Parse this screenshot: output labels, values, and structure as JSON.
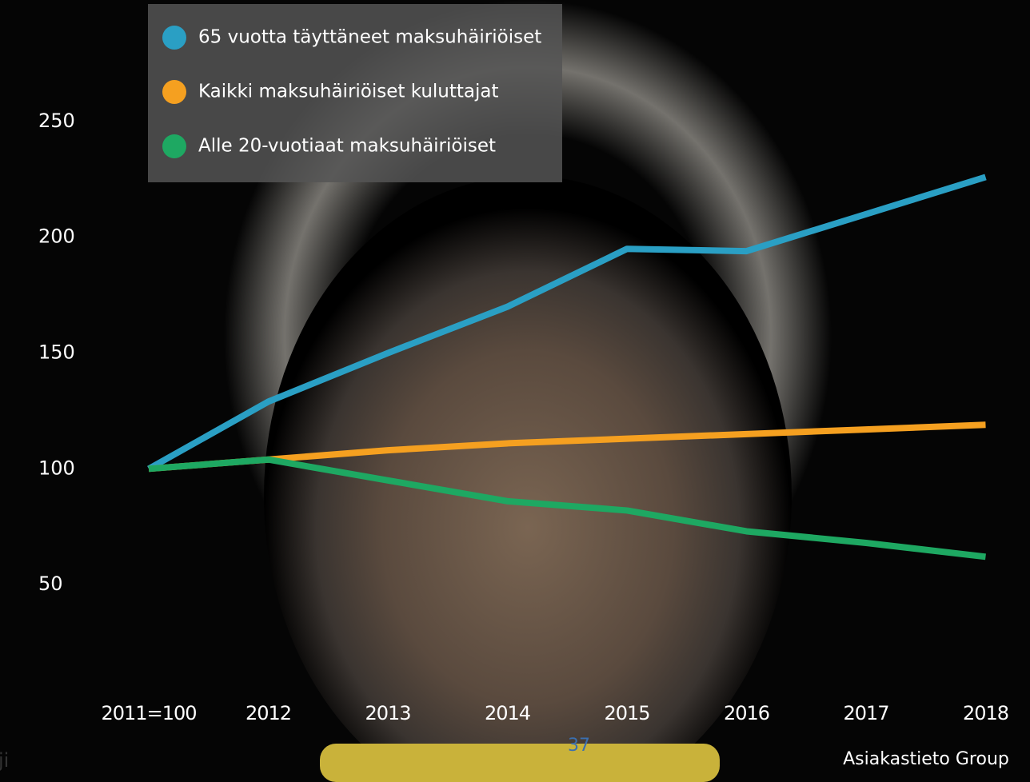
{
  "chart_data": {
    "type": "line",
    "categories": [
      "2011=100",
      "2012",
      "2013",
      "2014",
      "2015",
      "2016",
      "2017",
      "2018"
    ],
    "series": [
      {
        "name": "65 vuotta täyttäneet maksuhäiriöiset",
        "color": "#2a9fc4",
        "values": [
          100,
          129,
          150,
          170,
          195,
          194,
          210,
          226
        ]
      },
      {
        "name": "Kaikki maksuhäiriöiset kuluttajat",
        "color": "#f5a020",
        "values": [
          100,
          104,
          108,
          111,
          113,
          115,
          117,
          119
        ]
      },
      {
        "name": "Alle 20-vuotiaat maksuhäiriöiset",
        "color": "#1ea862",
        "values": [
          100,
          104,
          95,
          86,
          82,
          73,
          68,
          62
        ]
      }
    ],
    "ylim": [
      30,
      260
    ],
    "yticks": [
      50,
      100,
      150,
      200,
      250
    ],
    "grid": false,
    "legend": "top-left",
    "annotations": [
      "Asiakastieto Group"
    ]
  },
  "page_number": "37",
  "side_text": "ji"
}
